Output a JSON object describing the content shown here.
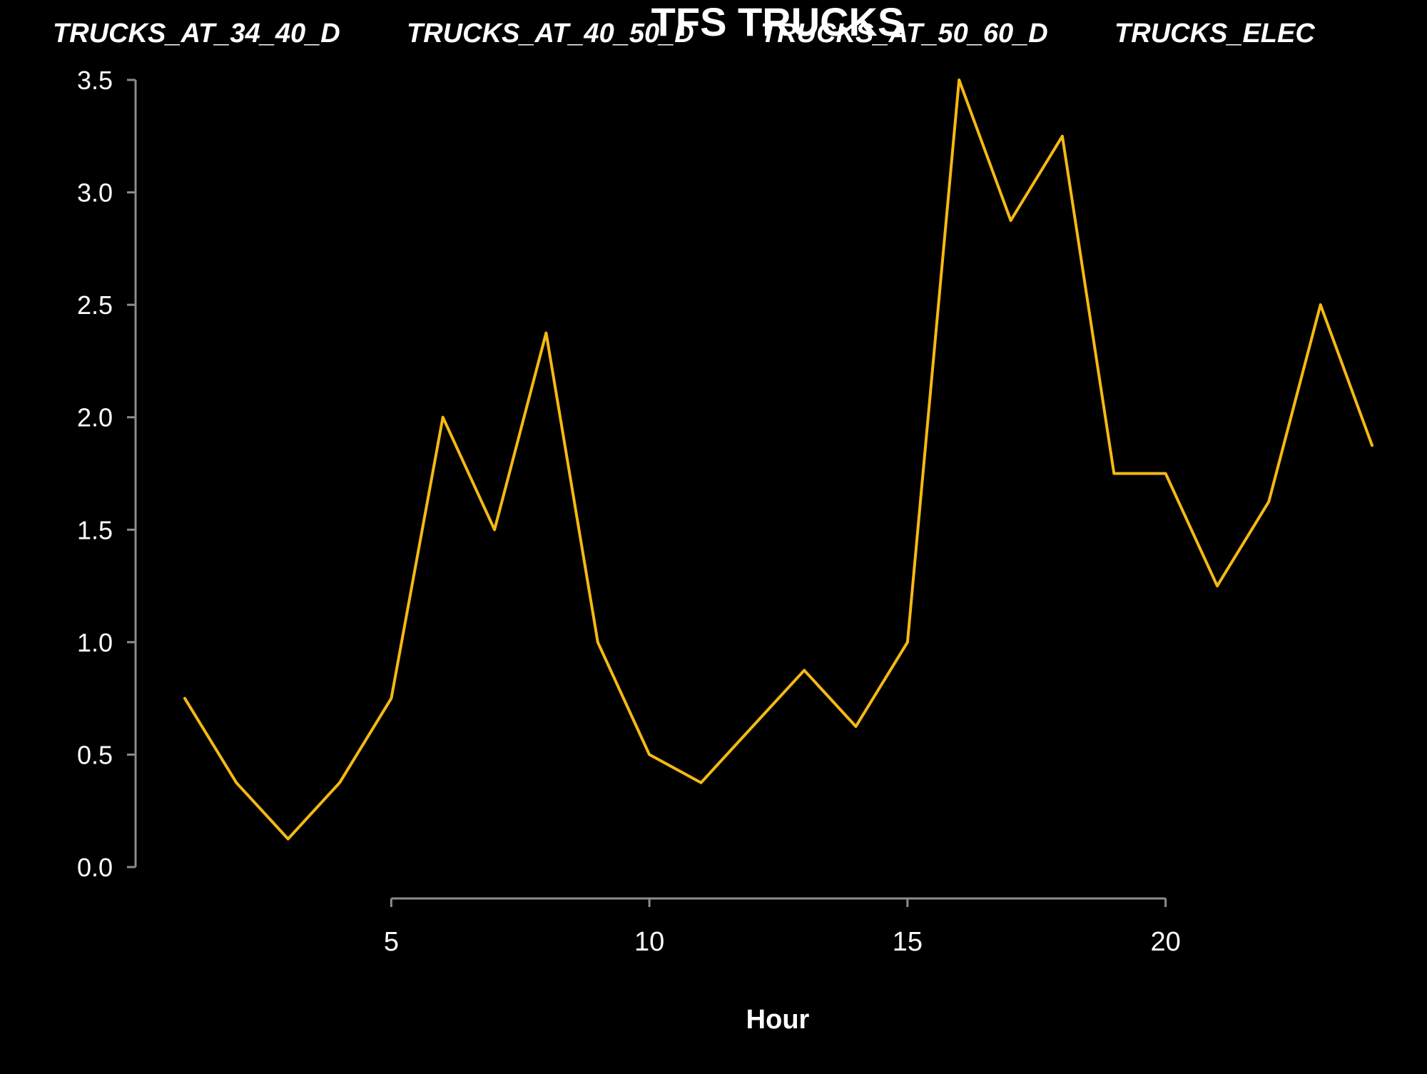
{
  "chart_data": {
    "type": "line",
    "title": "TFS TRUCKS",
    "header_labels": [
      "TRUCKS_AT_34_40_D",
      "TRUCKS_AT_40_50_D",
      "TRUCKS_AT_50_60_D",
      "TRUCKS_ELEC"
    ],
    "xlabel": "Hour",
    "ylabel": "",
    "x_ticks": [
      5,
      10,
      15,
      20
    ],
    "y_ticks": [
      0.0,
      0.5,
      1.0,
      1.5,
      2.0,
      2.5,
      3.0,
      3.5
    ],
    "xlim": [
      1,
      24
    ],
    "ylim": [
      0,
      3.5
    ],
    "grid": false,
    "series": [
      {
        "x": [
          1,
          2,
          3,
          4,
          5,
          6,
          7,
          8,
          9,
          10,
          11,
          12,
          13,
          14,
          15,
          16,
          17,
          18,
          19,
          20,
          21,
          22,
          23,
          24
        ],
        "values": [
          0.75,
          0.375,
          0.125,
          0.375,
          0.75,
          2.0,
          1.5,
          2.375,
          1.0,
          0.5,
          0.375,
          0.625,
          0.875,
          0.625,
          1.0,
          3.5,
          2.875,
          3.25,
          1.75,
          1.75,
          1.25,
          1.625,
          2.5,
          1.875
        ],
        "color": "#F5B914"
      }
    ]
  },
  "colors": {
    "background": "#000000",
    "text": "#FFFFFF",
    "axis": "#8C8C8C",
    "line": "#F5B914"
  }
}
